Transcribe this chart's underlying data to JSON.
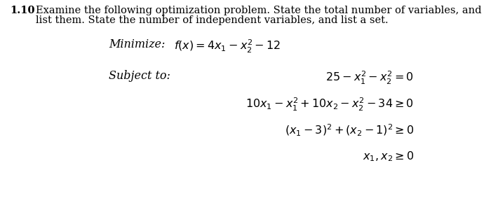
{
  "background_color": "#ffffff",
  "header_num": "1.10",
  "header_line1": "Examine the following optimization problem. State the total number of variables, and",
  "header_line2": "list them. State the number of independent variables, and list a set.",
  "minimize_label": "Minimize:",
  "minimize_eq": "$f(x) = 4x_1 - x_2^2 - 12$",
  "subject_label": "Subject to:",
  "c1": "$25 - x_1^2 - x_2^2 = 0$",
  "c2": "$10x_1 - x_1^2 + 10x_2 - x_2^2 - 34 \\geq 0$",
  "c3": "$(x_1 - 3)^2 + (x_2 - 1)^2 \\geq 0$",
  "c4": "$x_1, x_2 \\geq 0$",
  "font_size_header": 10.5,
  "font_size_body": 11.5,
  "fig_width": 7.0,
  "fig_height": 2.93,
  "dpi": 100
}
